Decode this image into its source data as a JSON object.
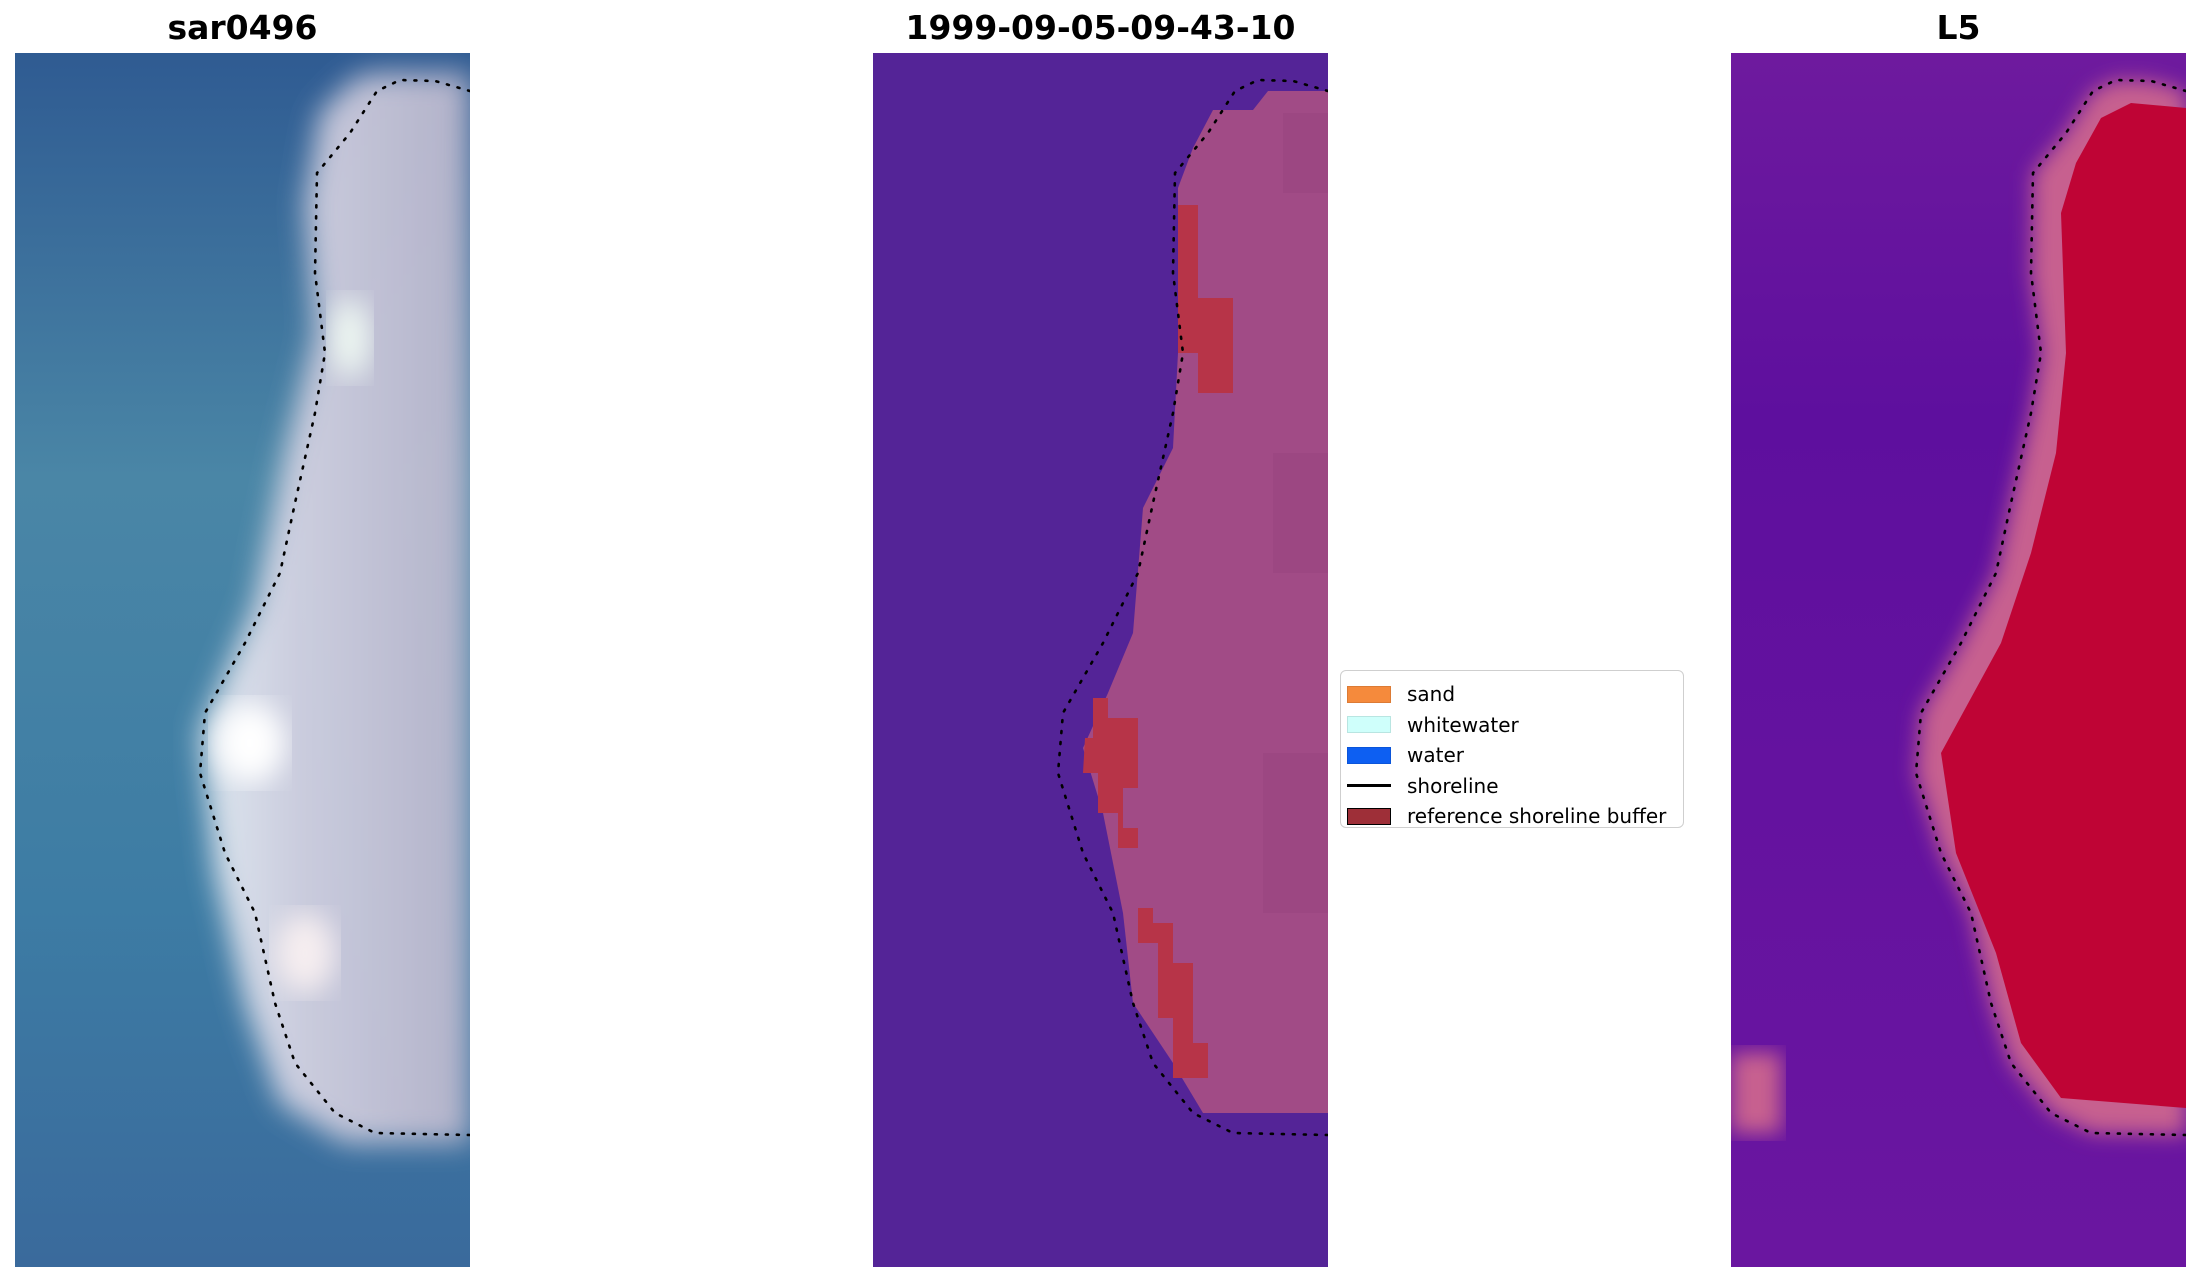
{
  "panels": [
    {
      "title": "sar0496",
      "kind": "rgb"
    },
    {
      "title": "1999-09-05-09-43-10",
      "kind": "classified"
    },
    {
      "title": "L5",
      "kind": "index"
    }
  ],
  "legend": {
    "items": [
      {
        "label": "sand",
        "color": "#f58a3c",
        "type": "patch"
      },
      {
        "label": "whitewater",
        "color": "#cffffb",
        "type": "patch"
      },
      {
        "label": "water",
        "color": "#0d5ff2",
        "type": "patch"
      },
      {
        "label": "shoreline",
        "color": "#000000",
        "type": "line"
      },
      {
        "label": "reference shoreline buffer",
        "color": "#9e2f38",
        "type": "patch"
      }
    ]
  },
  "colors": {
    "rgb_water": "#3a6e9c",
    "rgb_sand": "#c9c4d6",
    "classified_water": "#542497",
    "classified_sand": "#a14b86",
    "classified_buffer": "#b73448",
    "index_low": "#5a109f",
    "index_high": "#bf0435"
  }
}
